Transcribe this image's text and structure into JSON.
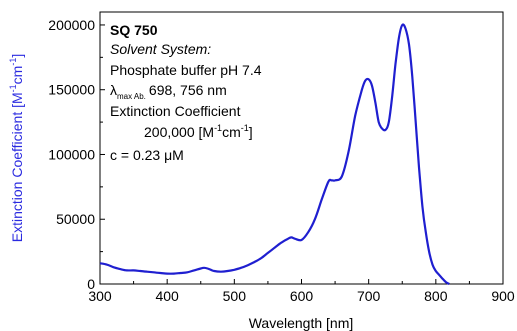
{
  "chart_data": {
    "type": "line",
    "xlabel": "Wavelength [nm]",
    "ylabel": "Extinction Coefficient [M",
    "ylabel_sup1": "-1",
    "ylabel_mid": "cm",
    "ylabel_sup2": "-1",
    "ylabel_end": "]",
    "xlim": [
      300,
      900
    ],
    "ylim": [
      0,
      210000
    ],
    "x_ticks": [
      300,
      400,
      500,
      600,
      700,
      800,
      900
    ],
    "x_tick_labels": [
      "300",
      "400",
      "500",
      "600",
      "700",
      "800",
      "900"
    ],
    "y_ticks": [
      0,
      50000,
      100000,
      150000,
      200000
    ],
    "y_tick_labels": [
      "0",
      "50000",
      "100000",
      "150000",
      "200000"
    ],
    "grid": false,
    "line_color": "#1f1fd0",
    "ylabel_color": "#2a2ae0",
    "series": [
      {
        "x": [
          300,
          310,
          320,
          330,
          340,
          350,
          360,
          370,
          380,
          390,
          400,
          410,
          420,
          430,
          440,
          450,
          455,
          460,
          465,
          470,
          480,
          490,
          500,
          510,
          520,
          530,
          540,
          550,
          560,
          570,
          580,
          585,
          590,
          600,
          610,
          620,
          630,
          640,
          645,
          650,
          660,
          670,
          680,
          690,
          695,
          700,
          705,
          710,
          715,
          720,
          725,
          730,
          735,
          740,
          745,
          750,
          755,
          760,
          765,
          770,
          775,
          780,
          785,
          790,
          795,
          800,
          805,
          810,
          815,
          820
        ],
        "y": [
          16000,
          15000,
          13000,
          11500,
          10500,
          10500,
          10000,
          9500,
          9000,
          8500,
          8000,
          8000,
          8500,
          9000,
          10500,
          12000,
          12500,
          12000,
          11000,
          10000,
          9500,
          10000,
          11000,
          12500,
          14500,
          17000,
          20000,
          24000,
          28000,
          32000,
          35000,
          36000,
          35000,
          34000,
          40000,
          50000,
          65000,
          79000,
          80000,
          80000,
          83000,
          102000,
          130000,
          150000,
          157000,
          158000,
          153000,
          140000,
          125000,
          120000,
          119000,
          125000,
          145000,
          170000,
          190000,
          200000,
          197000,
          185000,
          160000,
          125000,
          90000,
          60000,
          40000,
          25000,
          15000,
          10000,
          7000,
          4000,
          1500,
          0
        ]
      }
    ]
  },
  "legend": {
    "title": "SQ 750",
    "solvent_label": "Solvent System:",
    "solvent_value": "Phosphate buffer pH 7.4",
    "lambda_symbol": "λ",
    "lambda_sub": "max Ab.",
    "lambda_value": "698, 756 nm",
    "ext_label": "Extinction Coefficient",
    "ext_value_prefix": "200,000 [M",
    "ext_sup1": "-1",
    "ext_mid": "cm",
    "ext_sup2": "-1",
    "ext_end": "]",
    "conc": "c = 0.23 μM"
  }
}
